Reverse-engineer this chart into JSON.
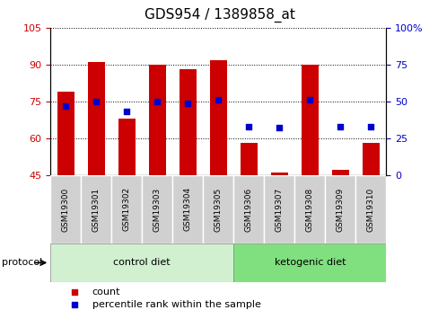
{
  "title": "GDS954 / 1389858_at",
  "samples": [
    "GSM19300",
    "GSM19301",
    "GSM19302",
    "GSM19303",
    "GSM19304",
    "GSM19305",
    "GSM19306",
    "GSM19307",
    "GSM19308",
    "GSM19309",
    "GSM19310"
  ],
  "red_bar_values": [
    79,
    91,
    68,
    90,
    88,
    92,
    58,
    46,
    90,
    47,
    58
  ],
  "blue_dot_values": [
    47,
    50,
    43,
    50,
    49,
    51,
    33,
    32,
    51,
    33,
    33
  ],
  "ylim_left": [
    45,
    105
  ],
  "ylim_right": [
    0,
    100
  ],
  "left_ticks": [
    45,
    60,
    75,
    90,
    105
  ],
  "right_ticks": [
    0,
    25,
    50,
    75,
    100
  ],
  "right_tick_labels": [
    "0",
    "25",
    "50",
    "75",
    "100%"
  ],
  "bar_color": "#cc0000",
  "dot_color": "#0000cc",
  "bg_plot": "#ffffff",
  "bg_tick_area": "#d0d0d0",
  "bg_control": "#d0f0d0",
  "bg_ketogenic": "#80e080",
  "control_label": "control diet",
  "ketogenic_label": "ketogenic diet",
  "protocol_label": "protocol",
  "legend_count": "count",
  "legend_pct": "percentile rank within the sample",
  "n_control": 6,
  "n_keto": 5,
  "bar_bottom": 45,
  "bar_width": 0.55,
  "dot_size": 25,
  "title_fontsize": 11,
  "tick_fontsize": 8,
  "label_fontsize": 8,
  "left_tick_color": "#cc0000",
  "right_tick_color": "#0000cc"
}
